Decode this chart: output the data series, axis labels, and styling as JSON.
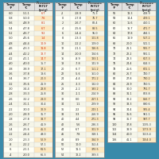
{
  "title": "Ammonia Refrigeration Temperature Pressure Chart",
  "bg_color": "#3a8aaa",
  "table_bg": "#fffff5",
  "header_bg": "#e0e0e0",
  "pressure_col_bg": "#fde8c0",
  "rows": [
    [
      -60,
      -51.1,
      6.7
    ],
    [
      -58,
      -50.0,
      7.6
    ],
    [
      -56,
      -48.9,
      8.1
    ],
    [
      -54,
      -47.8,
      6.7
    ],
    [
      -52,
      -46.7,
      9.2
    ],
    [
      -50,
      -45.6,
      1.4
    ],
    [
      -48,
      -44.4,
      10.9
    ],
    [
      -46,
      -43.3,
      11.8
    ],
    [
      -44,
      -42.2,
      12.7
    ],
    [
      -42,
      -41.1,
      14.7
    ],
    [
      -40,
      -40.0,
      15.7
    ],
    [
      -38,
      -38.9,
      17.1
    ],
    [
      -36,
      -37.8,
      18.6
    ],
    [
      -34,
      -36.7,
      20.3
    ],
    [
      -32,
      -35.6,
      21.9
    ],
    [
      -30,
      -34.4,
      23.8
    ],
    [
      -28,
      -33.3,
      25.8
    ],
    [
      -26,
      -32.2,
      28.0
    ],
    [
      -24,
      -31.1,
      30.4
    ],
    [
      -22,
      -30.0,
      32.9
    ],
    [
      -20,
      -28.9,
      35.7
    ],
    [
      -18,
      -27.8,
      38.7
    ],
    [
      -16,
      -26.7,
      41.9
    ],
    [
      -14,
      -25.6,
      45.3
    ],
    [
      -12,
      -24.4,
      49.0
    ],
    [
      -10,
      -23.3,
      52.9
    ],
    [
      -8,
      -22.2,
      57.1
    ],
    [
      -6,
      -21.1,
      61.5
    ],
    [
      -4,
      -20.0,
      66.3
    ],
    [
      -2,
      -18.9,
      71.3
    ],
    [
      0,
      -17.8,
      76.7
    ],
    [
      2,
      -16.7,
      82.4
    ],
    [
      4,
      -15.6,
      88.5
    ],
    [
      6,
      -14.4,
      95.0
    ],
    [
      8,
      -13.3,
      101.8
    ],
    [
      10,
      -12.2,
      109.0
    ],
    [
      12,
      -11.1,
      116.6
    ],
    [
      14,
      -10.0,
      124.6
    ],
    [
      16,
      -8.9,
      133.1
    ],
    [
      18,
      -7.8,
      141.9
    ],
    [
      20,
      -6.7,
      151.2
    ],
    [
      22,
      -5.6,
      161.0
    ],
    [
      24,
      -4.4,
      171.2
    ],
    [
      26,
      -3.3,
      182.0
    ],
    [
      28,
      -2.2,
      193.2
    ],
    [
      30,
      -1.1,
      204.9
    ],
    [
      32,
      0.0,
      217.1
    ],
    [
      34,
      1.1,
      229.9
    ],
    [
      36,
      2.2,
      243.1
    ],
    [
      38,
      3.3,
      256.9
    ],
    [
      40,
      4.4,
      271.3
    ],
    [
      42,
      5.6,
      286.3
    ],
    [
      44,
      6.7,
      301.9
    ],
    [
      46,
      7.8,
      318.1
    ],
    [
      48,
      8.9,
      334.9
    ],
    [
      50,
      10.0,
      352.4
    ],
    [
      52,
      11.1,
      370.5
    ],
    [
      54,
      12.2,
      389.3
    ],
    [
      56,
      13.3,
      408.9
    ],
    [
      58,
      14.4,
      429.1
    ],
    [
      60,
      15.6,
      450.1
    ],
    [
      62,
      16.7,
      471.7
    ],
    [
      64,
      17.8,
      494.1
    ],
    [
      66,
      18.9,
      517.2
    ],
    [
      68,
      20.0,
      541.1
    ],
    [
      70,
      21.1,
      565.7
    ],
    [
      72,
      22.2,
      591.1
    ],
    [
      74,
      23.3,
      617.3
    ],
    [
      76,
      24.4,
      644.3
    ],
    [
      78,
      25.6,
      672.1
    ],
    [
      80,
      26.7,
      700.7
    ],
    [
      82,
      27.8,
      730.2
    ],
    [
      84,
      28.9,
      760.5
    ],
    [
      86,
      30.0,
      791.7
    ],
    [
      88,
      31.1,
      823.8
    ],
    [
      90,
      32.2,
      856.7
    ],
    [
      92,
      33.3,
      890.6
    ],
    [
      94,
      34.4,
      925.4
    ],
    [
      96,
      35.6,
      961.1
    ],
    [
      98,
      36.7,
      997.7
    ],
    [
      100,
      37.8,
      1035.3
    ],
    [
      102,
      38.9,
      1073.9
    ],
    [
      104,
      40.0,
      1113.4
    ],
    [
      106,
      41.1,
      1154.0
    ]
  ],
  "col1_range": [
    0,
    29
  ],
  "col2_range": [
    29,
    58
  ],
  "col3_range": [
    58,
    87
  ],
  "rows_per_col": 29,
  "header_texts": [
    "Temp\n°F",
    "Temp\n°C",
    "Pressure\nR-717\n(psig)"
  ]
}
